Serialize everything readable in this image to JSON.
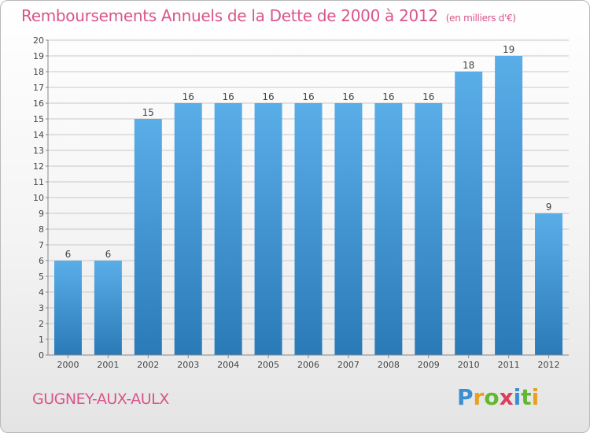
{
  "header": {
    "title": "Remboursements Annuels de la Dette de 2000 à 2012",
    "subtitle": "(en milliers d'€)"
  },
  "footer": {
    "commune": "GUGNEY-AUX-AULX",
    "logo_text": "Proxiti"
  },
  "colors": {
    "title": "#d9558a",
    "bar_top": "#5aaee8",
    "bar_bottom": "#2a7ab8",
    "gridline": "#c8c8c8"
  },
  "chart_data": {
    "type": "bar",
    "title": "Remboursements Annuels de la Dette de 2000 à 2012",
    "subtitle": "(en milliers d'€)",
    "categories": [
      "2000",
      "2001",
      "2002",
      "2003",
      "2004",
      "2005",
      "2006",
      "2007",
      "2008",
      "2009",
      "2010",
      "2011",
      "2012"
    ],
    "values": [
      6,
      6,
      15,
      16,
      16,
      16,
      16,
      16,
      16,
      16,
      18,
      19,
      9
    ],
    "ylim": [
      0,
      20
    ],
    "yticks": [
      0,
      1,
      2,
      3,
      4,
      5,
      6,
      7,
      8,
      9,
      10,
      11,
      12,
      13,
      14,
      15,
      16,
      17,
      18,
      19,
      20
    ],
    "grid": true,
    "xlabel": "",
    "ylabel": ""
  }
}
